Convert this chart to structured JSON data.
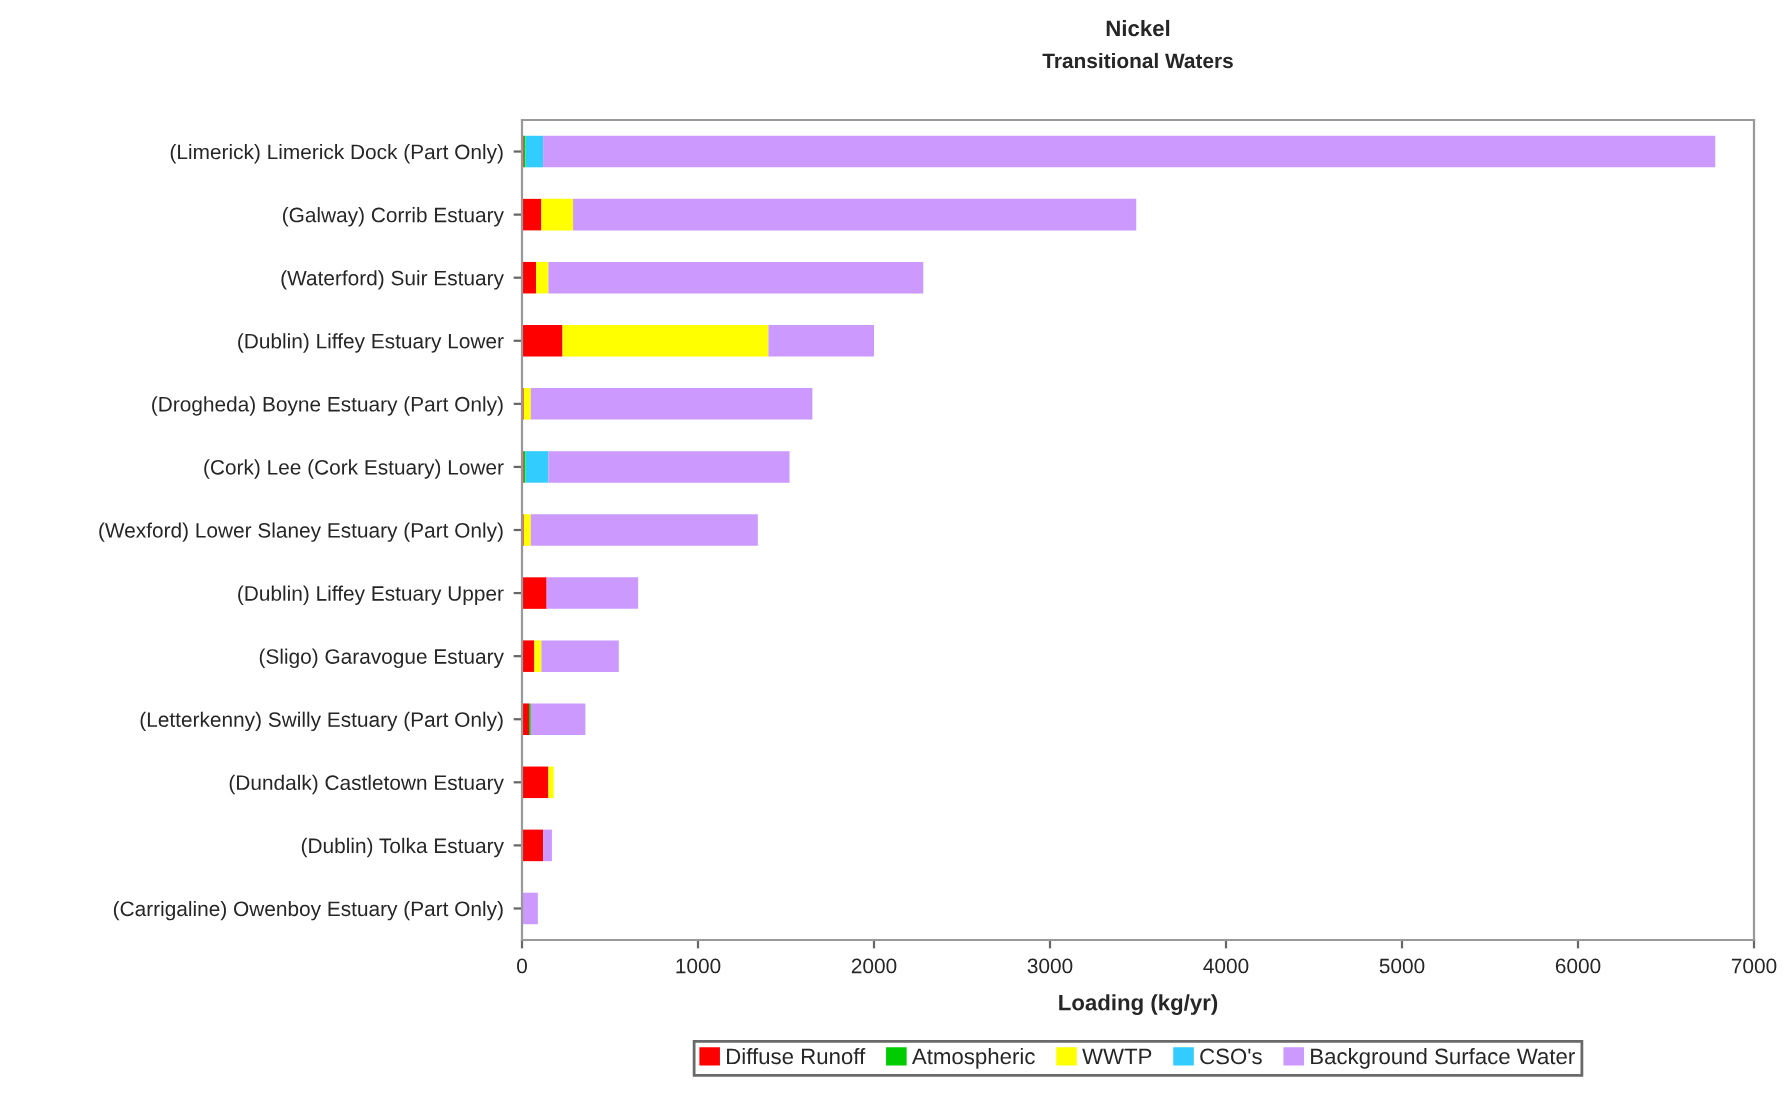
{
  "chart_data": {
    "type": "bar",
    "orientation": "horizontal",
    "stacked": true,
    "title": "Nickel",
    "subtitle": "Transitional Waters",
    "xlabel": "Loading (kg/yr)",
    "categories": [
      "(Limerick) Limerick Dock (Part Only)",
      "(Galway) Corrib Estuary",
      "(Waterford) Suir Estuary",
      "(Dublin) Liffey Estuary Lower",
      "(Drogheda) Boyne Estuary (Part Only)",
      "(Cork) Lee (Cork Estuary) Lower",
      "(Wexford) Lower Slaney Estuary (Part Only)",
      "(Dublin) Liffey Estuary Upper",
      "(Sligo) Garavogue Estuary",
      "(Letterkenny) Swilly Estuary (Part Only)",
      "(Dundalk) Castletown Estuary",
      "(Dublin) Tolka Estuary",
      "(Carrigaline) Owenboy Estuary (Part Only)"
    ],
    "series": [
      {
        "name": "Diffuse Runoff",
        "color": "#ff0000",
        "values": [
          10,
          110,
          80,
          230,
          10,
          10,
          10,
          140,
          70,
          40,
          150,
          120,
          0
        ]
      },
      {
        "name": "Atmospheric",
        "color": "#00cc00",
        "values": [
          10,
          0,
          0,
          0,
          0,
          10,
          0,
          0,
          0,
          10,
          0,
          0,
          0
        ]
      },
      {
        "name": "WWTP",
        "color": "#ffff00",
        "values": [
          0,
          180,
          70,
          1170,
          40,
          0,
          40,
          0,
          40,
          0,
          30,
          0,
          0
        ]
      },
      {
        "name": "CSO's",
        "color": "#33ccff",
        "values": [
          100,
          0,
          0,
          0,
          0,
          130,
          0,
          0,
          0,
          0,
          0,
          0,
          0
        ]
      },
      {
        "name": "Background Surface Water",
        "color": "#cc99ff",
        "values": [
          6660,
          3200,
          2130,
          600,
          1600,
          1370,
          1290,
          520,
          440,
          310,
          0,
          50,
          90
        ]
      }
    ],
    "xlim": [
      0,
      7000
    ],
    "xticks": [
      0,
      1000,
      2000,
      3000,
      4000,
      5000,
      6000,
      7000
    ],
    "grid": false,
    "legend": "bottom"
  }
}
